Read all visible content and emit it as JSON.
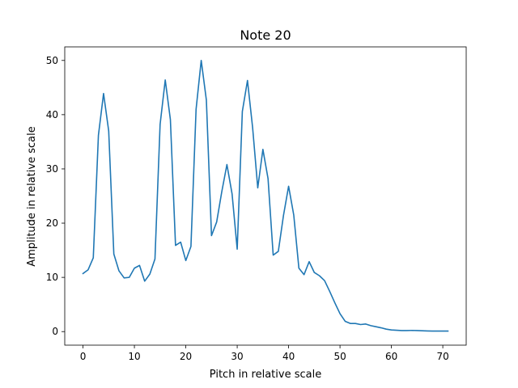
{
  "chart_data": {
    "type": "line",
    "title": "Note 20",
    "xlabel": "Pitch in relative scale",
    "ylabel": "Amplitude in relative scale",
    "xlim": [
      -3.55,
      74.55
    ],
    "ylim": [
      -2.5,
      52.5
    ],
    "xticks": [
      0,
      10,
      20,
      30,
      40,
      50,
      60,
      70
    ],
    "yticks": [
      0,
      10,
      20,
      30,
      40,
      50
    ],
    "grid": false,
    "series": [
      {
        "color": "#1f77b4",
        "x": [
          0,
          1,
          2,
          3,
          4,
          5,
          6,
          7,
          8,
          9,
          10,
          11,
          12,
          13,
          14,
          15,
          16,
          17,
          18,
          19,
          20,
          21,
          22,
          23,
          24,
          25,
          26,
          27,
          28,
          29,
          30,
          31,
          32,
          33,
          34,
          35,
          36,
          37,
          38,
          39,
          40,
          41,
          42,
          43,
          44,
          45,
          46,
          47,
          48,
          49,
          50,
          51,
          52,
          53,
          54,
          55,
          56,
          57,
          58,
          59,
          60,
          61,
          62,
          63,
          64,
          65,
          66,
          67,
          68,
          69,
          70,
          71
        ],
        "values": [
          10.7,
          11.4,
          13.6,
          36.2,
          43.9,
          37.0,
          14.3,
          11.2,
          9.9,
          10.0,
          11.7,
          12.2,
          9.3,
          10.6,
          13.4,
          38.2,
          46.4,
          39.1,
          15.9,
          16.5,
          13.1,
          15.7,
          41.0,
          50.0,
          42.7,
          17.7,
          20.2,
          25.8,
          30.8,
          25.4,
          15.2,
          40.6,
          46.3,
          37.6,
          26.5,
          33.6,
          28.2,
          14.1,
          14.8,
          21.4,
          26.8,
          21.5,
          11.7,
          10.5,
          12.9,
          10.9,
          10.3,
          9.4,
          7.4,
          5.3,
          3.3,
          1.9,
          1.5,
          1.5,
          1.3,
          1.4,
          1.1,
          0.9,
          0.7,
          0.45,
          0.3,
          0.25,
          0.2,
          0.2,
          0.22,
          0.2,
          0.15,
          0.12,
          0.1,
          0.1,
          0.1,
          0.1
        ]
      }
    ]
  }
}
